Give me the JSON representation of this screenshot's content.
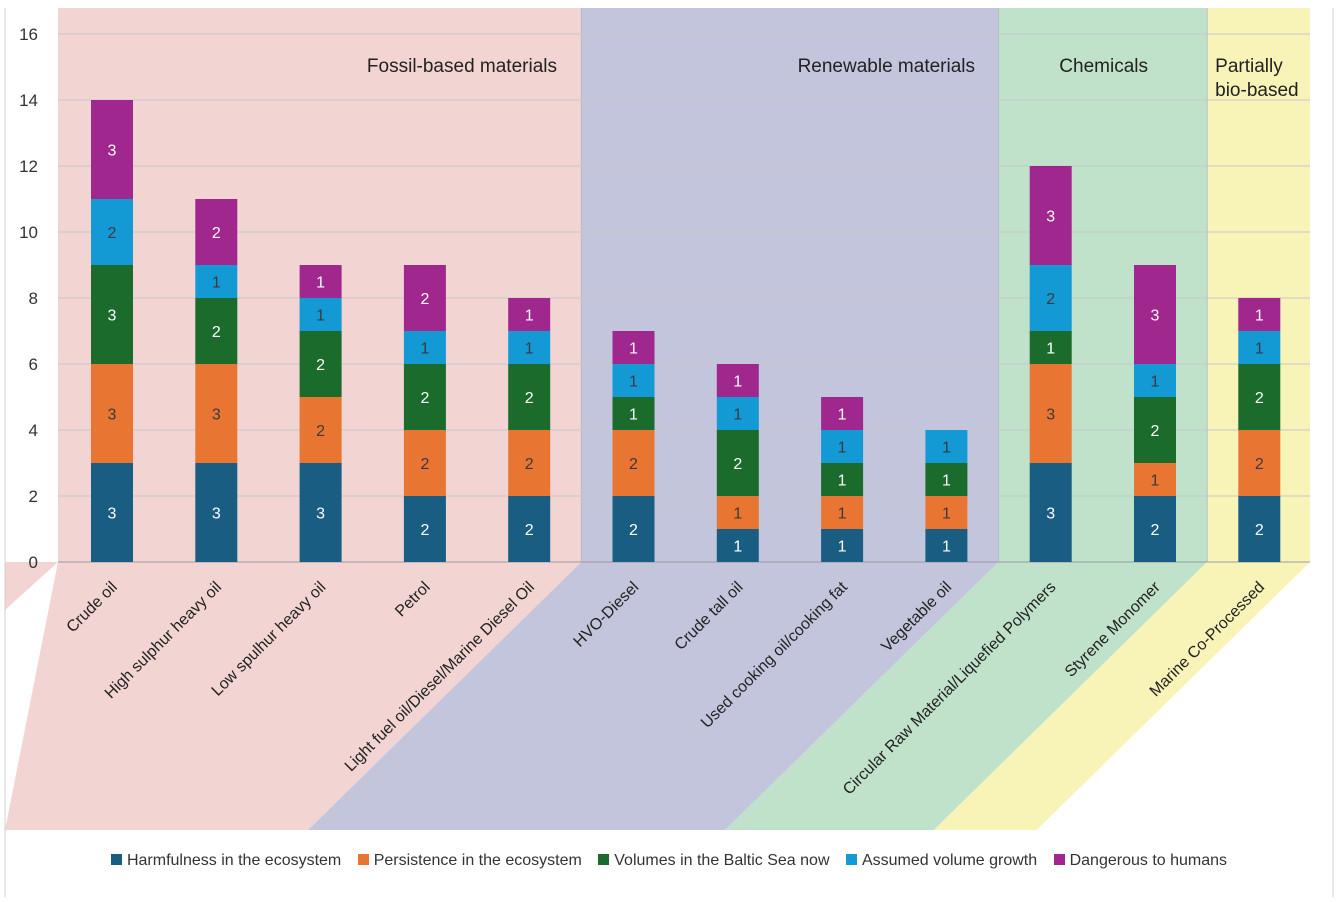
{
  "chart_data": {
    "type": "bar",
    "stacked": true,
    "title": "",
    "xlabel": "",
    "ylabel": "",
    "ylim": [
      0,
      16
    ],
    "y_ticks": [
      0,
      2,
      4,
      6,
      8,
      10,
      12,
      14,
      16
    ],
    "grid": true,
    "legend_position": "bottom",
    "categories": [
      "Crude oil",
      "High sulphur heavy oil",
      "Low spulhur heavy oil",
      "Petrol",
      "Light fuel oil/Diesel/Marine Diesel Oil",
      "HVO-Diesel",
      "Crude tall oil",
      "Used cooking oil/cooking fat",
      "Vegetable oil",
      "Circular Raw Material/Liquefied Polymers",
      "Styrene Monomer",
      "Marine Co-Processed"
    ],
    "series": [
      {
        "name": "Harmfulness in the ecosystem",
        "color": "#1a5d82",
        "values": [
          3,
          3,
          3,
          2,
          2,
          2,
          1,
          1,
          1,
          3,
          2,
          2
        ]
      },
      {
        "name": "Persistence in the ecosystem",
        "color": "#e87632",
        "values": [
          3,
          3,
          2,
          2,
          2,
          2,
          1,
          1,
          1,
          3,
          1,
          2
        ]
      },
      {
        "name": "Volumes in the Baltic Sea now",
        "color": "#1b6b2c",
        "values": [
          3,
          2,
          2,
          2,
          2,
          1,
          2,
          1,
          1,
          1,
          2,
          2
        ]
      },
      {
        "name": "Assumed volume growth",
        "color": "#139ad5",
        "values": [
          2,
          1,
          1,
          1,
          1,
          1,
          1,
          1,
          1,
          2,
          1,
          1
        ]
      },
      {
        "name": "Dangerous to humans",
        "color": "#a0278e",
        "values": [
          3,
          2,
          1,
          2,
          1,
          1,
          1,
          1,
          0,
          3,
          3,
          1
        ]
      }
    ],
    "groups": [
      {
        "label_lines": [
          "Fossil-based materials"
        ],
        "first": 0,
        "last": 4,
        "color": "#f2d4d2"
      },
      {
        "label_lines": [
          "Renewable materials"
        ],
        "first": 5,
        "last": 8,
        "color": "#c3c5dd"
      },
      {
        "label_lines": [
          "Chemicals"
        ],
        "first": 9,
        "last": 10,
        "color": "#c0e1ca"
      },
      {
        "label_lines": [
          "Partially",
          "bio-based"
        ],
        "first": 11,
        "last": 11,
        "color": "#f8f4b8"
      }
    ]
  }
}
